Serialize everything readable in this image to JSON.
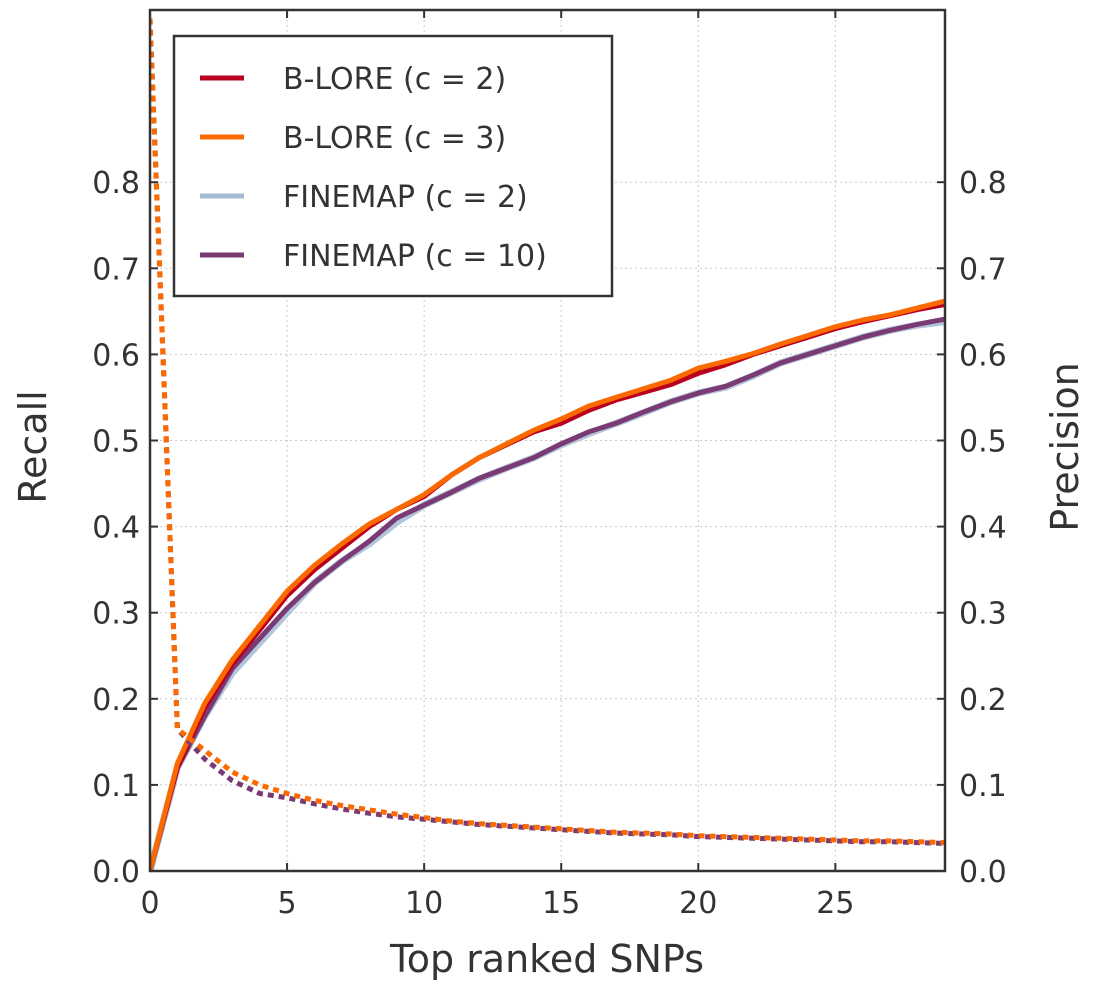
{
  "chart_data": {
    "type": "line",
    "xlabel": "Top ranked SNPs",
    "ylabel": "Recall",
    "ylabel_right": "Precision",
    "xlim": [
      0,
      29
    ],
    "ylim": [
      0,
      1.0
    ],
    "x_ticks": [
      "0",
      "5",
      "10",
      "15",
      "20",
      "25"
    ],
    "y_ticks": [
      "0.0",
      "0.1",
      "0.2",
      "0.3",
      "0.4",
      "0.5",
      "0.6",
      "0.7",
      "0.8"
    ],
    "y_ticks_right": [
      "0.0",
      "0.1",
      "0.2",
      "0.3",
      "0.4",
      "0.5",
      "0.6",
      "0.7",
      "0.8"
    ],
    "grid": true,
    "legend_position": "top-left",
    "legend": [
      {
        "label": "B-LORE (c = 2)",
        "color": "#b9001f"
      },
      {
        "label": "B-LORE (c = 3)",
        "color": "#fb6a00"
      },
      {
        "label": "FINEMAP (c = 2)",
        "color": "#a4bbd3"
      },
      {
        "label": "FINEMAP (c = 10)",
        "color": "#7a3a73"
      }
    ],
    "x": [
      0,
      1,
      2,
      3,
      4,
      5,
      6,
      7,
      8,
      9,
      10,
      11,
      12,
      13,
      14,
      15,
      16,
      17,
      18,
      19,
      20,
      21,
      22,
      23,
      24,
      25,
      26,
      27,
      28,
      29
    ],
    "series": [
      {
        "legend": 2,
        "metric": "recall",
        "style": "solid",
        "width": 7,
        "opacity": 0.85,
        "values": [
          0.0,
          0.12,
          0.18,
          0.23,
          0.265,
          0.3,
          0.335,
          0.36,
          0.38,
          0.405,
          0.425,
          0.44,
          0.455,
          0.468,
          0.48,
          0.495,
          0.508,
          0.52,
          0.532,
          0.545,
          0.555,
          0.562,
          0.575,
          0.59,
          0.6,
          0.61,
          0.62,
          0.628,
          0.634,
          0.638
        ]
      },
      {
        "legend": 3,
        "metric": "recall",
        "style": "solid",
        "width": 5,
        "opacity": 1,
        "values": [
          0.0,
          0.12,
          0.18,
          0.235,
          0.27,
          0.305,
          0.335,
          0.36,
          0.383,
          0.41,
          0.425,
          0.44,
          0.456,
          0.468,
          0.48,
          0.496,
          0.51,
          0.52,
          0.533,
          0.545,
          0.555,
          0.563,
          0.576,
          0.59,
          0.6,
          0.61,
          0.62,
          0.628,
          0.635,
          0.641
        ]
      },
      {
        "legend": 0,
        "metric": "recall",
        "style": "solid",
        "width": 5,
        "opacity": 1,
        "values": [
          0.0,
          0.12,
          0.19,
          0.24,
          0.28,
          0.32,
          0.35,
          0.375,
          0.4,
          0.42,
          0.435,
          0.46,
          0.48,
          0.495,
          0.51,
          0.52,
          0.535,
          0.547,
          0.556,
          0.565,
          0.578,
          0.588,
          0.6,
          0.61,
          0.62,
          0.63,
          0.638,
          0.645,
          0.652,
          0.658
        ]
      },
      {
        "legend": 1,
        "metric": "recall",
        "style": "solid",
        "width": 5,
        "opacity": 1,
        "values": [
          0.0,
          0.125,
          0.195,
          0.245,
          0.285,
          0.325,
          0.355,
          0.38,
          0.403,
          0.42,
          0.437,
          0.46,
          0.48,
          0.496,
          0.512,
          0.525,
          0.54,
          0.55,
          0.56,
          0.57,
          0.584,
          0.592,
          0.601,
          0.612,
          0.622,
          0.632,
          0.64,
          0.646,
          0.654,
          0.662
        ]
      },
      {
        "legend": 3,
        "metric": "precision",
        "style": "dotted",
        "width": 5,
        "opacity": 1,
        "values": [
          0.99,
          0.165,
          0.13,
          0.105,
          0.09,
          0.085,
          0.078,
          0.072,
          0.067,
          0.063,
          0.06,
          0.057,
          0.054,
          0.052,
          0.05,
          0.048,
          0.046,
          0.044,
          0.043,
          0.042,
          0.04,
          0.039,
          0.038,
          0.037,
          0.036,
          0.035,
          0.034,
          0.034,
          0.033,
          0.032
        ]
      },
      {
        "legend": 1,
        "metric": "precision",
        "style": "dotted",
        "width": 5,
        "opacity": 1,
        "values": [
          0.99,
          0.165,
          0.14,
          0.115,
          0.1,
          0.09,
          0.082,
          0.076,
          0.071,
          0.066,
          0.062,
          0.058,
          0.055,
          0.053,
          0.051,
          0.049,
          0.047,
          0.045,
          0.044,
          0.043,
          0.041,
          0.04,
          0.039,
          0.038,
          0.037,
          0.036,
          0.035,
          0.035,
          0.034,
          0.033
        ]
      }
    ]
  }
}
